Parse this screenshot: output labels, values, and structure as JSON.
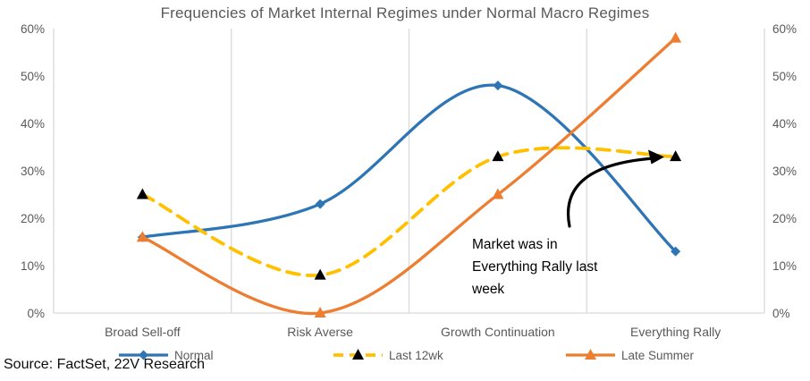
{
  "title": "Frequencies of Market Internal Regimes under Normal Macro Regimes",
  "source": "Source: FactSet, 22V Research",
  "annotation": {
    "text": "Market was in Everything Rally last week",
    "arrow_points_to": "Last 12wk value at Everything Rally"
  },
  "colors": {
    "normal": "#2E75B6",
    "last12wk": "#FFC000",
    "late_summer": "#ED7D31",
    "marker_last12wk": "#000000",
    "gridline": "#D9D9D9",
    "axis_text": "#595959",
    "annotation_arrow": "#000000"
  },
  "chart_data": {
    "type": "line",
    "title": "Frequencies of Market Internal Regimes under Normal Macro Regimes",
    "categories": [
      "Broad Sell-off",
      "Risk Averse",
      "Growth Continuation",
      "Everything Rally"
    ],
    "series": [
      {
        "name": "Normal",
        "values": [
          16,
          23,
          48,
          13
        ],
        "color": "#2E75B6",
        "dash": "solid",
        "marker": "diamond",
        "marker_color": "#2E75B6"
      },
      {
        "name": "Last 12wk",
        "values": [
          25,
          8,
          33,
          33
        ],
        "color": "#FFC000",
        "dash": "dashed",
        "marker": "triangle",
        "marker_color": "#000000"
      },
      {
        "name": "Late Summer",
        "values": [
          16,
          0,
          25,
          58
        ],
        "color": "#ED7D31",
        "dash": "solid",
        "marker": "triangle",
        "marker_color": "#ED7D31"
      }
    ],
    "ylim": [
      0,
      60
    ],
    "ytick_step": 10,
    "yticks": [
      "0%",
      "10%",
      "20%",
      "30%",
      "40%",
      "50%",
      "60%"
    ],
    "y_axis_sides": "both",
    "grid": "vertical-only",
    "smoothed_lines": true,
    "legend_position": "bottom"
  }
}
